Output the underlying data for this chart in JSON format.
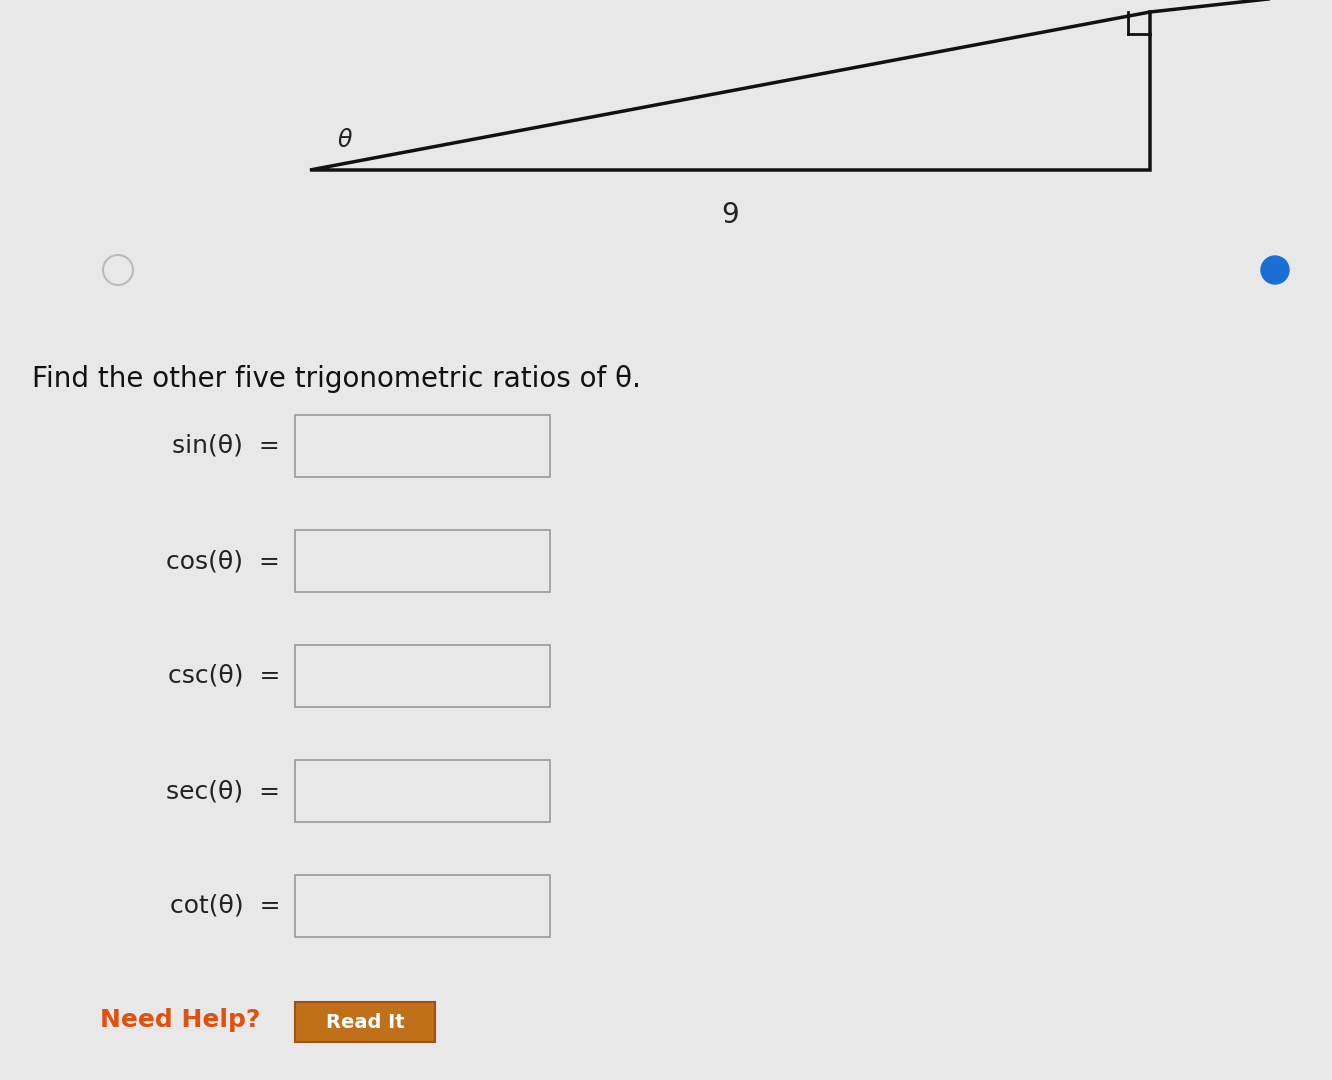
{
  "bg_color": "#d8d8d8",
  "content_bg": "#e8e8e8",
  "title_text": "Find the other five trigonometric ratios of θ.",
  "title_fontsize": 20,
  "labels": [
    "sin(θ)  =",
    "cos(θ)  =",
    "csc(θ)  =",
    "sec(θ)  =",
    "cot(θ)  ="
  ],
  "label_fontsize": 18,
  "label_color": "#222222",
  "box_color": "#e8e8e8",
  "box_edge_color": "#999999",
  "need_help_text": "Need Help?",
  "need_help_color": "#e05010",
  "need_help_fontsize": 18,
  "read_it_text": "Read It",
  "read_it_box_color": "#c07018",
  "read_it_box_edge": "#a05010",
  "read_it_fontsize": 14,
  "hyp_label": "9",
  "theta_label": "θ",
  "circle_filled_color": "#1a6fd4",
  "tri_color": "#111111",
  "tri_linewidth": 2.5
}
